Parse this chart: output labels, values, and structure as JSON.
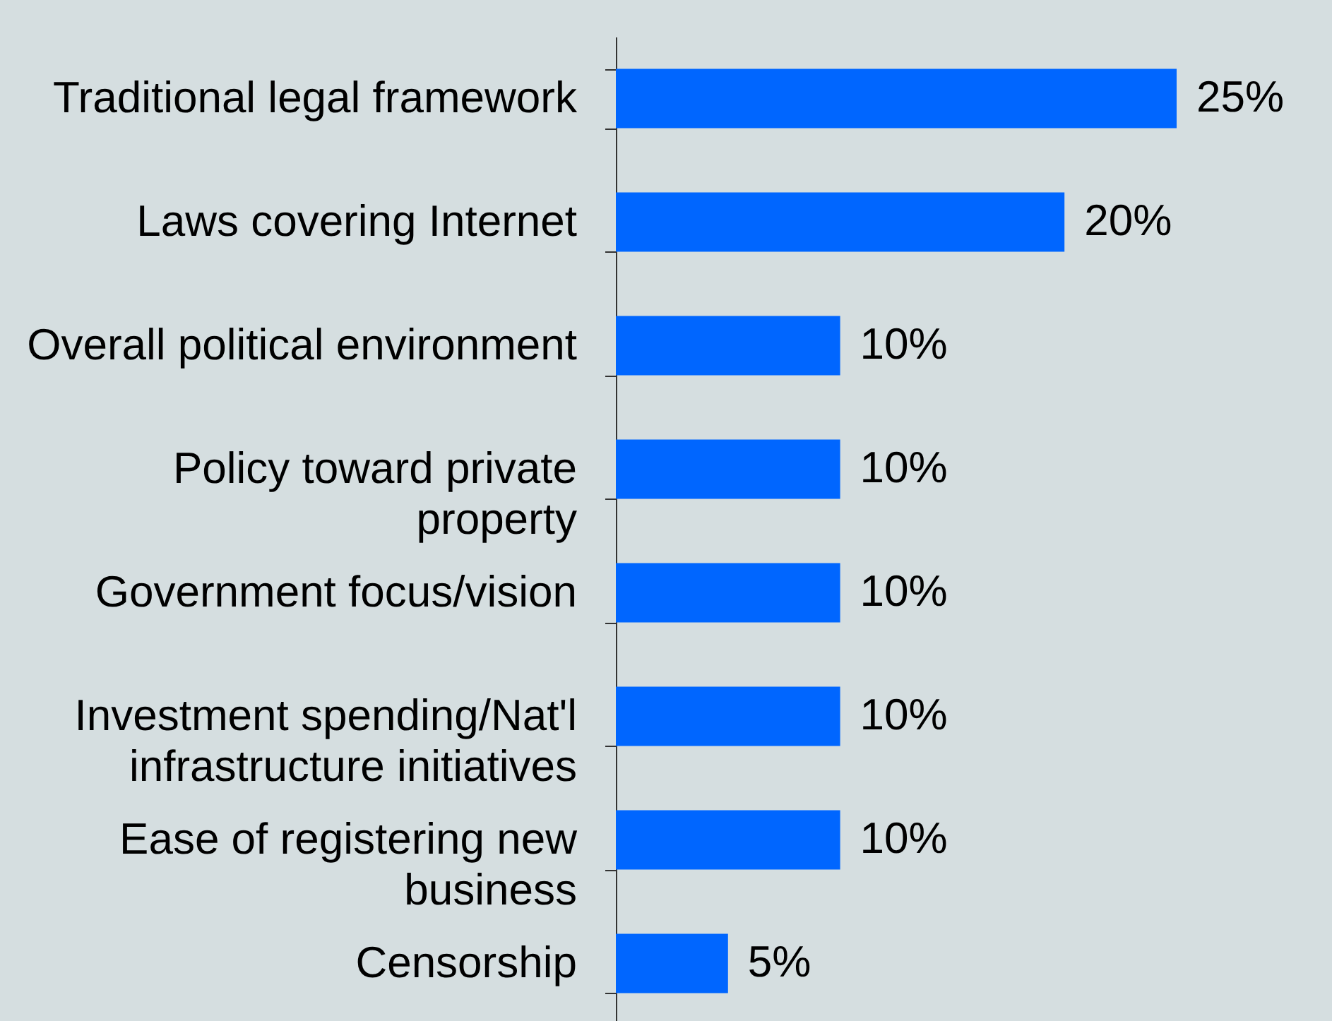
{
  "chart_data": {
    "type": "bar",
    "orientation": "horizontal",
    "categories": [
      "Traditional legal framework",
      "Laws covering Internet",
      "Overall political environment",
      "Policy toward private\nproperty",
      "Government focus/vision",
      "Investment spending/Nat'l\ninfrastructure initiatives",
      "Ease of registering new\nbusiness",
      "Censorship"
    ],
    "values": [
      25,
      20,
      10,
      10,
      10,
      10,
      10,
      5
    ],
    "value_labels": [
      "25%",
      "20%",
      "10%",
      "10%",
      "10%",
      "10%",
      "10%",
      "5%"
    ],
    "color": "#0066ff",
    "tick_labels": "y"
  }
}
